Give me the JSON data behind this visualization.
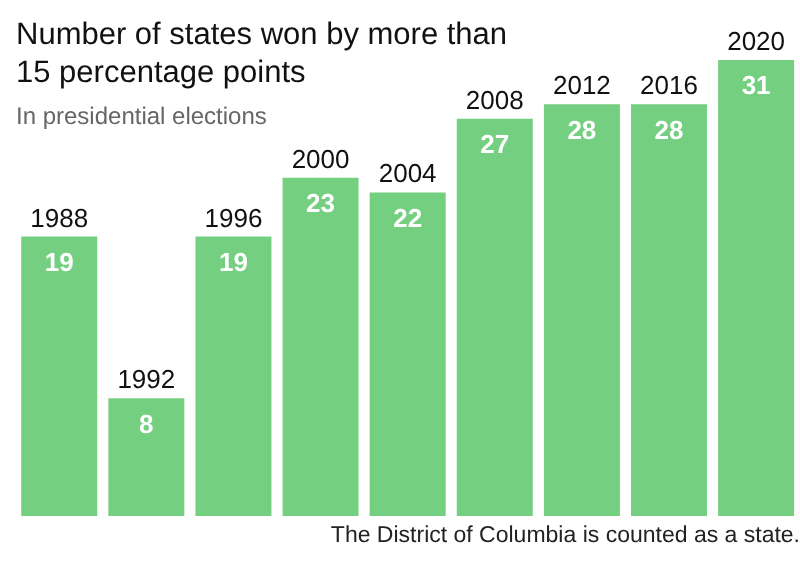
{
  "chart_data": {
    "type": "bar",
    "title": "Number of states won by more than 15 percentage points",
    "subtitle": "In presidential elections",
    "categories": [
      "1988",
      "1992",
      "1996",
      "2000",
      "2004",
      "2008",
      "2012",
      "2016",
      "2020"
    ],
    "values": [
      19,
      8,
      19,
      23,
      22,
      27,
      28,
      28,
      31
    ],
    "color": "#74cf80",
    "data_labels": true,
    "annotations": [
      "The District of Columbia is counted as a state."
    ]
  }
}
